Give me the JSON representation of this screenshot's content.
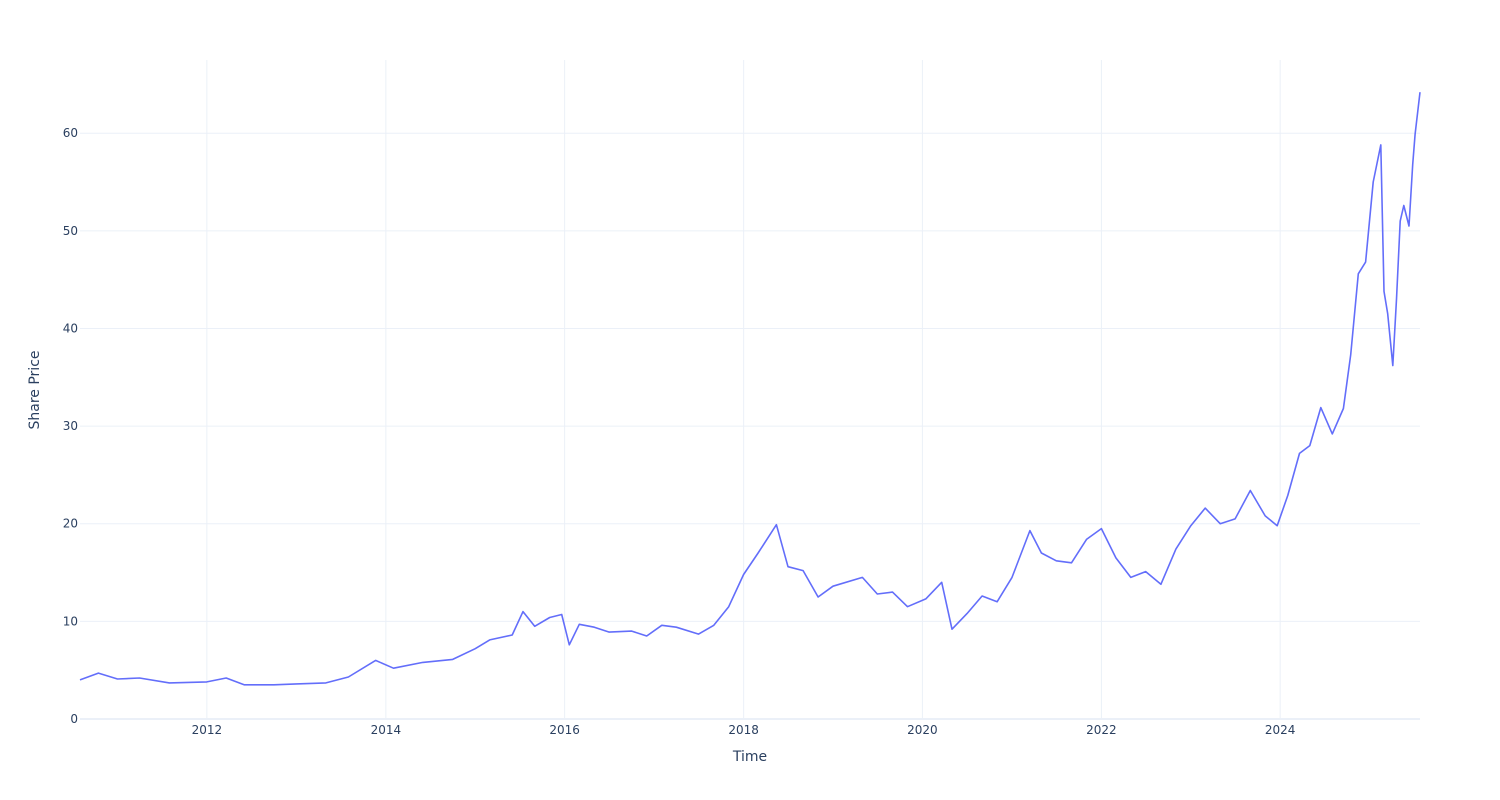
{
  "chart_data": {
    "type": "line",
    "title": "",
    "xlabel": "Time",
    "ylabel": "Share Price",
    "xlim": [
      "2010-08-01",
      "2025-07-25"
    ],
    "ylim": [
      0,
      67.5
    ],
    "x_ticks": [
      "2012",
      "2014",
      "2016",
      "2018",
      "2020",
      "2022",
      "2024"
    ],
    "y_ticks": [
      0,
      10,
      20,
      30,
      40,
      50,
      60
    ],
    "grid": true,
    "legend": "none",
    "colors": {
      "line": "#636efa",
      "grid": "#ebf0f8",
      "text": "#2a3f5f",
      "zeroline": "#ebf0f8"
    },
    "series": [
      {
        "x": [
          "2010-08-01",
          "2010-10-15",
          "2011-01-01",
          "2011-04-01",
          "2011-08-01",
          "2012-01-01",
          "2012-03-20",
          "2012-06-01",
          "2012-10-01",
          "2013-01-01",
          "2013-05-01",
          "2013-08-01",
          "2013-11-20",
          "2014-02-01",
          "2014-06-01",
          "2014-10-01",
          "2015-01-01",
          "2015-03-01",
          "2015-06-01",
          "2015-07-15",
          "2015-09-01",
          "2015-11-01",
          "2015-12-20",
          "2016-01-20",
          "2016-03-01",
          "2016-05-01",
          "2016-07-01",
          "2016-10-01",
          "2016-12-01",
          "2017-02-01",
          "2017-04-01",
          "2017-07-01",
          "2017-09-01",
          "2017-11-01",
          "2018-01-01",
          "2018-03-01",
          "2018-05-15",
          "2018-07-01",
          "2018-09-01",
          "2018-11-01",
          "2019-01-01",
          "2019-05-01",
          "2019-07-01",
          "2019-09-01",
          "2019-11-01",
          "2020-01-15",
          "2020-03-20",
          "2020-05-01",
          "2020-07-01",
          "2020-09-01",
          "2020-11-01",
          "2021-01-01",
          "2021-03-15",
          "2021-05-01",
          "2021-07-01",
          "2021-09-01",
          "2021-11-01",
          "2022-01-01",
          "2022-03-01",
          "2022-05-01",
          "2022-07-01",
          "2022-09-01",
          "2022-11-01",
          "2023-01-01",
          "2023-03-01",
          "2023-05-01",
          "2023-07-01",
          "2023-09-01",
          "2023-11-01",
          "2023-12-20",
          "2024-02-01",
          "2024-03-20",
          "2024-05-01",
          "2024-06-15",
          "2024-08-01",
          "2024-09-15",
          "2024-10-15",
          "2024-11-15",
          "2024-12-15",
          "2025-01-15",
          "2025-02-15",
          "2025-02-28",
          "2025-03-15",
          "2025-04-05",
          "2025-04-20",
          "2025-05-05",
          "2025-05-20",
          "2025-06-10",
          "2025-06-25",
          "2025-07-05",
          "2025-07-25"
        ],
        "y": [
          4.0,
          4.7,
          4.1,
          4.2,
          3.7,
          3.8,
          4.2,
          3.5,
          3.5,
          3.6,
          3.7,
          4.3,
          6.0,
          5.2,
          5.8,
          6.1,
          7.2,
          8.1,
          8.6,
          11.0,
          9.5,
          10.4,
          10.7,
          7.6,
          9.7,
          9.4,
          8.9,
          9.0,
          8.5,
          9.6,
          9.4,
          8.7,
          9.6,
          11.5,
          14.8,
          17.0,
          19.9,
          15.6,
          15.2,
          12.5,
          13.6,
          14.5,
          12.8,
          13.0,
          11.5,
          12.3,
          14.0,
          9.2,
          10.8,
          12.6,
          12.0,
          14.5,
          19.3,
          17.0,
          16.2,
          16.0,
          18.4,
          19.5,
          16.5,
          14.5,
          15.1,
          13.8,
          17.4,
          19.8,
          21.6,
          20.0,
          20.5,
          23.4,
          20.8,
          19.8,
          22.9,
          27.2,
          28.0,
          31.9,
          29.2,
          31.8,
          37.3,
          45.6,
          46.8,
          55.0,
          58.8,
          43.8,
          41.5,
          36.2,
          43.0,
          51.0,
          52.6,
          50.5,
          56.8,
          59.9,
          64.2
        ]
      }
    ]
  }
}
